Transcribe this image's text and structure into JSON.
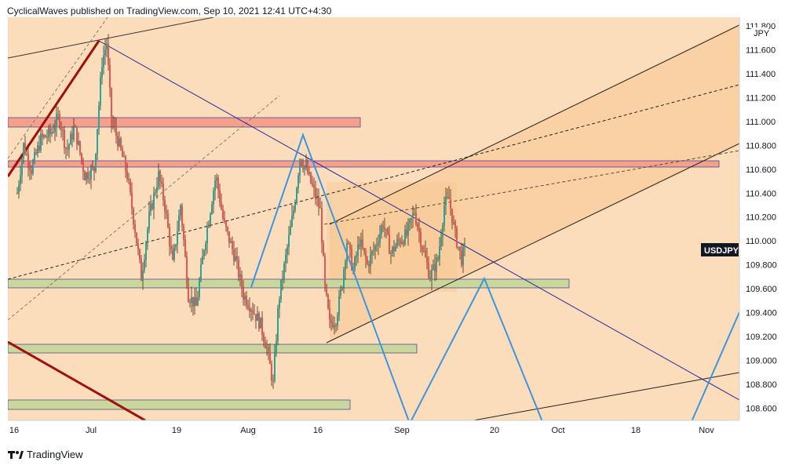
{
  "header": {
    "publisher_text": "CyclicalWaves published on TradingView.com, Sep 10, 2021 12:41 UTC+4:30"
  },
  "footer": {
    "brand": "TradingView",
    "logo_icon": "tradingview-logo-icon"
  },
  "chart_data": {
    "type": "candlestick",
    "symbol": "USDJPY",
    "currency_label": "JPY",
    "last_price": 109.85,
    "ylim": [
      108.55,
      111.82
    ],
    "y_ticks": [
      "111.800",
      "111.600",
      "111.400",
      "111.200",
      "111.000",
      "110.800",
      "110.600",
      "110.400",
      "110.200",
      "110.000",
      "109.800",
      "109.600",
      "109.400",
      "109.200",
      "109.000",
      "108.800",
      "108.600"
    ],
    "x_ticks": [
      "16",
      "Jul",
      "19",
      "Aug",
      "16",
      "Sep",
      "20",
      "Oct",
      "18",
      "Nov"
    ],
    "colors": {
      "background": "#fbdcbb",
      "up_candle": "#26a69a",
      "down_candle": "#ef5350",
      "resistance_zone": "#f4a08a",
      "support_zone": "#cbd79a",
      "wave_path": "#3d95e0",
      "trend_line": "#2a2a9a",
      "red_trend": "#a10f0a",
      "channel_fill": "#f7c891"
    },
    "series": [
      {
        "name": "price_path",
        "points": [
          [
            0,
            110.15
          ],
          [
            10,
            110.3
          ],
          [
            20,
            110.8
          ],
          [
            30,
            110.6
          ],
          [
            42,
            110.85
          ],
          [
            55,
            110.9
          ],
          [
            65,
            111.05
          ],
          [
            75,
            110.75
          ],
          [
            85,
            110.95
          ],
          [
            98,
            110.55
          ],
          [
            110,
            110.6
          ],
          [
            120,
            111.5
          ],
          [
            126,
            111.66
          ],
          [
            132,
            111.0
          ],
          [
            140,
            110.85
          ],
          [
            152,
            110.55
          ],
          [
            162,
            110.1
          ],
          [
            170,
            109.7
          ],
          [
            180,
            110.2
          ],
          [
            192,
            110.55
          ],
          [
            200,
            110.3
          ],
          [
            210,
            109.8
          ],
          [
            220,
            110.3
          ],
          [
            230,
            109.55
          ],
          [
            240,
            109.45
          ],
          [
            250,
            109.95
          ],
          [
            265,
            110.55
          ],
          [
            275,
            110.15
          ],
          [
            290,
            109.85
          ],
          [
            300,
            109.55
          ],
          [
            310,
            109.45
          ],
          [
            322,
            109.3
          ],
          [
            330,
            109.1
          ],
          [
            338,
            108.8
          ],
          [
            345,
            109.5
          ],
          [
            355,
            109.9
          ],
          [
            365,
            110.3
          ],
          [
            372,
            110.7
          ],
          [
            380,
            110.6
          ],
          [
            388,
            110.45
          ],
          [
            398,
            110.25
          ],
          [
            404,
            109.6
          ],
          [
            410,
            109.3
          ],
          [
            418,
            109.35
          ],
          [
            425,
            109.6
          ],
          [
            432,
            110.0
          ],
          [
            440,
            109.75
          ],
          [
            448,
            110.0
          ],
          [
            458,
            109.8
          ],
          [
            468,
            109.95
          ],
          [
            478,
            110.15
          ],
          [
            488,
            109.9
          ],
          [
            498,
            110.0
          ],
          [
            508,
            110.05
          ],
          [
            518,
            110.25
          ],
          [
            528,
            109.95
          ],
          [
            538,
            109.7
          ],
          [
            548,
            109.85
          ],
          [
            556,
            110.3
          ],
          [
            562,
            110.35
          ],
          [
            570,
            110.05
          ],
          [
            578,
            109.85
          ],
          [
            583,
            109.95
          ]
        ]
      }
    ]
  }
}
